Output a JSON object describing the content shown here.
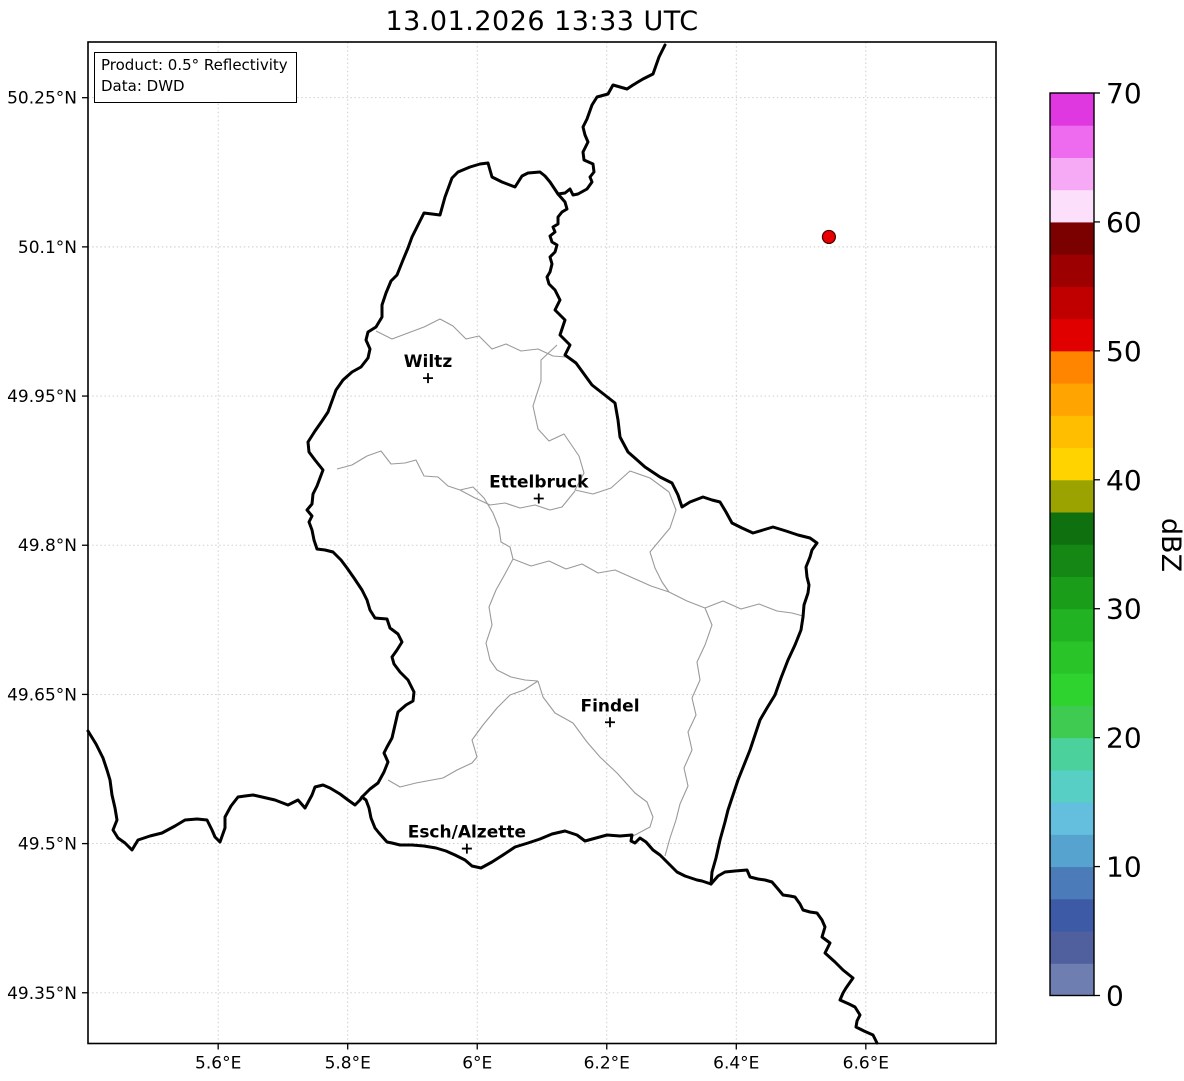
{
  "figure": {
    "title": "13.01.2026 13:33 UTC"
  },
  "product_box": {
    "line1": "Product: 0.5° Reflectivity",
    "line2": "Data: DWD"
  },
  "axes": {
    "x_ticks": [
      {
        "label": "5.6°E",
        "lon": 5.6
      },
      {
        "label": "5.8°E",
        "lon": 5.8
      },
      {
        "label": "6°E",
        "lon": 6.0
      },
      {
        "label": "6.2°E",
        "lon": 6.2
      },
      {
        "label": "6.4°E",
        "lon": 6.4
      },
      {
        "label": "6.6°E",
        "lon": 6.6
      }
    ],
    "y_ticks": [
      {
        "label": "50.25°N",
        "lat": 50.25
      },
      {
        "label": "50.1°N",
        "lat": 50.1
      },
      {
        "label": "49.95°N",
        "lat": 49.95
      },
      {
        "label": "49.8°N",
        "lat": 49.8
      },
      {
        "label": "49.65°N",
        "lat": 49.65
      },
      {
        "label": "49.5°N",
        "lat": 49.5
      },
      {
        "label": "49.35°N",
        "lat": 49.35
      }
    ]
  },
  "colorbar": {
    "label": "dBZ",
    "min": 0,
    "max": 70,
    "tick_values": [
      0,
      10,
      20,
      30,
      40,
      50,
      60,
      70
    ],
    "segment_step_dbz": 2.5,
    "segment_colors_low_to_high": [
      "#6F7EB0",
      "#50609F",
      "#3D5AA6",
      "#4B7CB9",
      "#57A3D0",
      "#64BEDE",
      "#57CFC4",
      "#4BD29C",
      "#3FCB52",
      "#2FD32F",
      "#28C428",
      "#21B321",
      "#1A9E1A",
      "#148714",
      "#0E700E",
      "#9AA300",
      "#FFD300",
      "#FFBE00",
      "#FFA400",
      "#FF8500",
      "#E10000",
      "#C00000",
      "#9D0000",
      "#7B0000",
      "#FBDFFB",
      "#F6AAF6",
      "#EE6AEE",
      "#E038E0"
    ]
  },
  "cities": [
    {
      "name": "Wiltz",
      "lon": 5.924,
      "lat": 49.968
    },
    {
      "name": "Ettelbruck",
      "lon": 6.095,
      "lat": 49.847
    },
    {
      "name": "Findel",
      "lon": 6.205,
      "lat": 49.622
    },
    {
      "name": "Esch/Alzette",
      "lon": 5.984,
      "lat": 49.495
    }
  ],
  "radar_echoes": [
    {
      "lon": 6.543,
      "lat": 50.11,
      "approx_dbz": 51,
      "color": "#E60000"
    }
  ]
}
